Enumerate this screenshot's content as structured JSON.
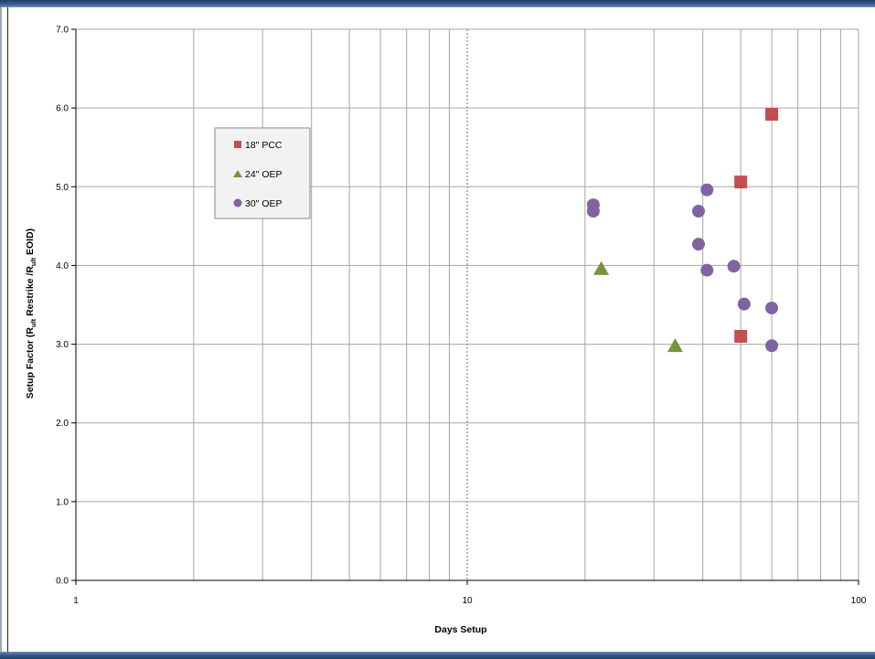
{
  "chart_data": {
    "type": "scatter",
    "title": "",
    "xlabel": "Days Setup",
    "ylabel": {
      "part1": "Setup Factor  (R",
      "sub1": "ult",
      "part2": " Restrike /R",
      "sub2": "ult",
      "part3": " EOID)"
    },
    "x_scale": "log",
    "xlim": [
      1,
      100
    ],
    "ylim": [
      0,
      7
    ],
    "x_tick_labels": [
      "1",
      "10",
      "100"
    ],
    "x_tick_values": [
      1,
      10,
      100
    ],
    "y_tick_values": [
      0,
      1,
      2,
      3,
      4,
      5,
      6,
      7
    ],
    "y_tick_labels": [
      "0.0",
      "1.0",
      "2.0",
      "3.0",
      "4.0",
      "5.0",
      "6.0",
      "7.0"
    ],
    "grid": true,
    "legend_position": "upper-left",
    "series": [
      {
        "name": "18\" PCC",
        "marker": "square",
        "color": "#c0504d",
        "points": [
          [
            60,
            5.92
          ],
          [
            50,
            5.06
          ],
          [
            50,
            3.1
          ]
        ]
      },
      {
        "name": "24\" OEP",
        "marker": "triangle",
        "color": "#77933c",
        "points": [
          [
            22,
            3.95
          ],
          [
            34,
            2.97
          ]
        ]
      },
      {
        "name": "30\" OEP",
        "marker": "circle",
        "color": "#8064a2",
        "points": [
          [
            21,
            4.77
          ],
          [
            21,
            4.69
          ],
          [
            41,
            4.96
          ],
          [
            39,
            4.69
          ],
          [
            39,
            4.27
          ],
          [
            41,
            3.94
          ],
          [
            48,
            3.99
          ],
          [
            51,
            3.51
          ],
          [
            60,
            3.46
          ],
          [
            60,
            2.98
          ]
        ]
      }
    ]
  }
}
